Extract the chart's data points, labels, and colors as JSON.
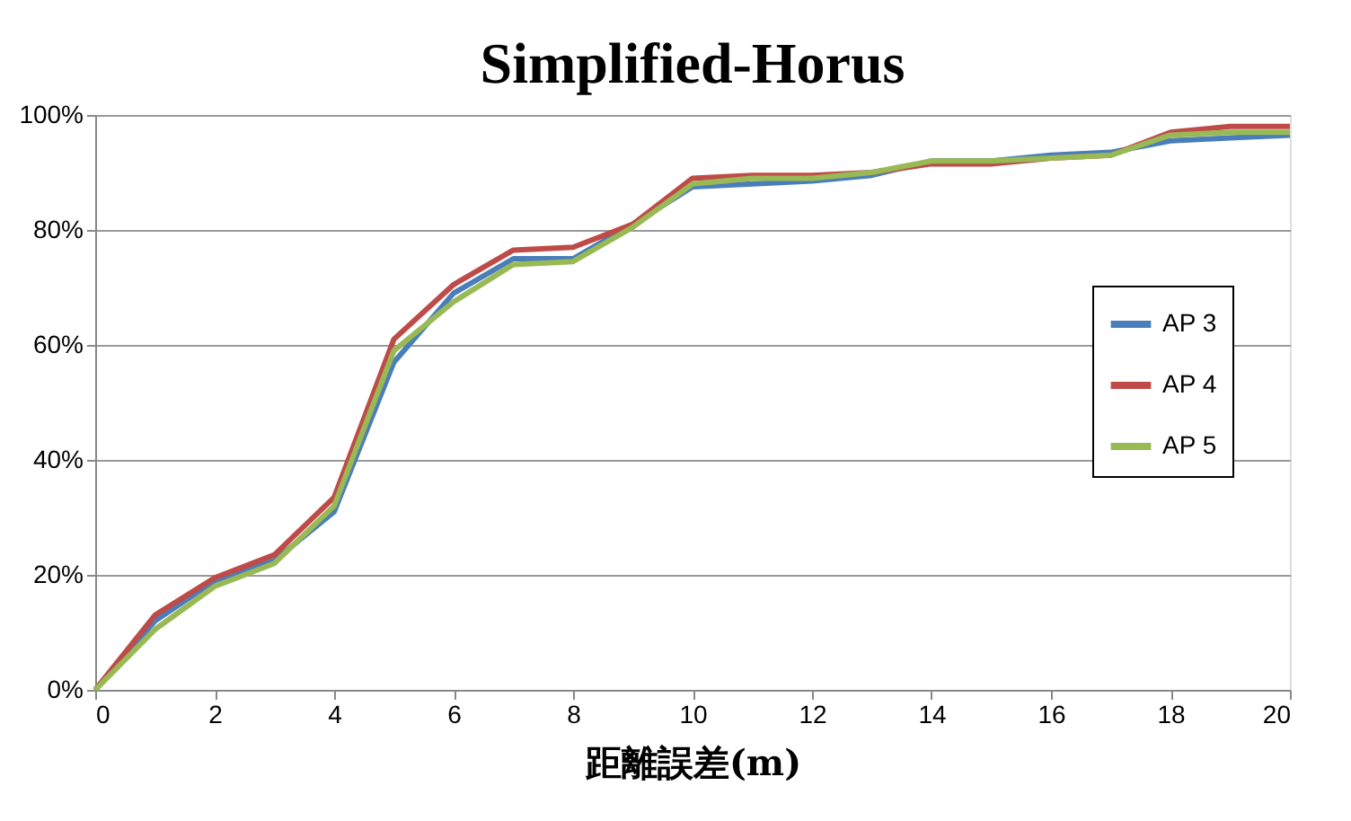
{
  "chart_data": {
    "type": "line",
    "title": "Simplified-Horus",
    "xlabel": "距離誤差(m)",
    "x": [
      0,
      1,
      2,
      3,
      4,
      5,
      6,
      7,
      8,
      9,
      10,
      11,
      12,
      13,
      14,
      15,
      16,
      17,
      18,
      19,
      20
    ],
    "series": [
      {
        "name": "AP 3",
        "color": "#4a7ebb",
        "values": [
          0,
          12,
          19,
          22.5,
          31,
          57,
          69,
          75,
          75,
          81,
          87.5,
          88,
          88.5,
          89.5,
          92,
          92,
          93,
          93.5,
          95.5,
          96,
          96.5
        ]
      },
      {
        "name": "AP 4",
        "color": "#be4b48",
        "values": [
          0,
          13,
          19.5,
          23.5,
          33.5,
          61,
          70.5,
          76.5,
          77,
          81,
          89,
          89.5,
          89.5,
          90,
          91.5,
          91.5,
          92.5,
          93,
          97,
          98,
          98
        ]
      },
      {
        "name": "AP 5",
        "color": "#98b954",
        "values": [
          0,
          10.5,
          18,
          22,
          32,
          59,
          67.5,
          74,
          74.5,
          80.5,
          88,
          89,
          89,
          90,
          92,
          92,
          92.5,
          93,
          96.5,
          97,
          97
        ]
      }
    ],
    "xlim": [
      0,
      20
    ],
    "xticks": [
      0,
      2,
      4,
      6,
      8,
      10,
      12,
      14,
      16,
      18,
      20
    ],
    "ylim": [
      0,
      100
    ],
    "yticks": [
      {
        "value": 0,
        "label": "0%"
      },
      {
        "value": 20,
        "label": "20%"
      },
      {
        "value": 40,
        "label": "40%"
      },
      {
        "value": 60,
        "label": "60%"
      },
      {
        "value": 80,
        "label": "80%"
      },
      {
        "value": 100,
        "label": "100%"
      }
    ],
    "grid": "y",
    "legend": "right",
    "marker": "none",
    "line_style": "solid"
  }
}
